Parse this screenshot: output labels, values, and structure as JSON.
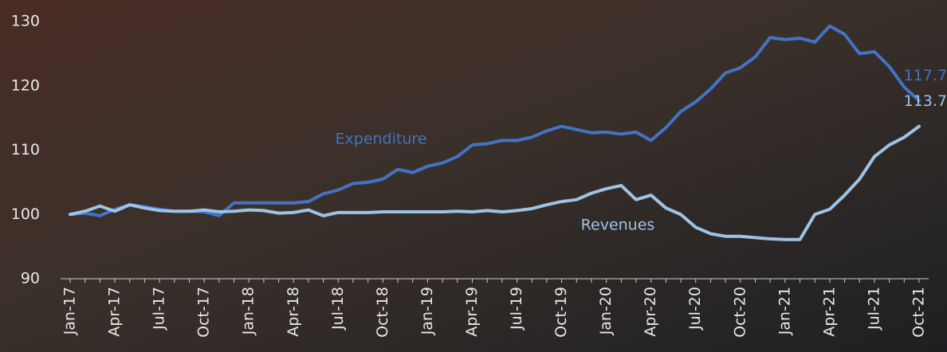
{
  "chart_data": {
    "type": "line",
    "categories": [
      "Jan-17",
      null,
      null,
      "Apr-17",
      null,
      null,
      "Jul-17",
      null,
      null,
      "Oct-17",
      null,
      null,
      "Jan-18",
      null,
      null,
      "Apr-18",
      null,
      null,
      "Jul-18",
      null,
      null,
      "Oct-18",
      null,
      null,
      "Jan-19",
      null,
      null,
      "Apr-19",
      null,
      null,
      "Jul-19",
      null,
      null,
      "Oct-19",
      null,
      null,
      "Jan-20",
      null,
      null,
      "Apr-20",
      null,
      null,
      "Jul-20",
      null,
      null,
      "Oct-20",
      null,
      null,
      "Jan-21",
      null,
      null,
      "Apr-21",
      null,
      null,
      "Jul-21",
      null,
      null,
      "Oct-21"
    ],
    "series": [
      {
        "name": "Expenditure",
        "color": "#4472c4",
        "values": [
          100,
          100.2,
          99.8,
          100.8,
          101.5,
          101.2,
          100.8,
          100.5,
          100.5,
          100.4,
          99.8,
          101.8,
          101.8,
          101.8,
          101.8,
          101.8,
          102,
          103.2,
          103.8,
          104.8,
          105,
          105.5,
          107,
          106.5,
          107.5,
          108,
          109,
          110.8,
          111,
          111.5,
          111.5,
          112,
          113,
          113.7,
          113.2,
          112.7,
          112.8,
          112.5,
          112.8,
          111.5,
          113.5,
          116,
          117.5,
          119.5,
          122,
          122.8,
          124.5,
          127.5,
          127.2,
          127.4,
          126.8,
          129.3,
          128,
          125,
          125.3,
          123,
          119.8,
          117.7
        ]
      },
      {
        "name": "Revenues",
        "color": "#9dc3e6",
        "values": [
          100,
          100.5,
          101.3,
          100.5,
          101.5,
          101,
          100.6,
          100.5,
          100.5,
          100.7,
          100.4,
          100.5,
          100.7,
          100.6,
          100.2,
          100.3,
          100.7,
          99.8,
          100.3,
          100.3,
          100.3,
          100.4,
          100.4,
          100.4,
          100.4,
          100.4,
          100.5,
          100.4,
          100.6,
          100.4,
          100.6,
          100.9,
          101.5,
          102,
          102.3,
          103.3,
          104,
          104.5,
          102.3,
          103,
          101,
          100,
          98,
          97,
          96.6,
          96.6,
          96.4,
          96.2,
          96.1,
          96.1,
          100,
          100.8,
          103,
          105.5,
          109,
          110.8,
          112,
          113.7
        ]
      }
    ],
    "ylim": [
      90,
      130
    ],
    "yticks": [
      90,
      100,
      110,
      120,
      130
    ],
    "grid": false
  }
}
